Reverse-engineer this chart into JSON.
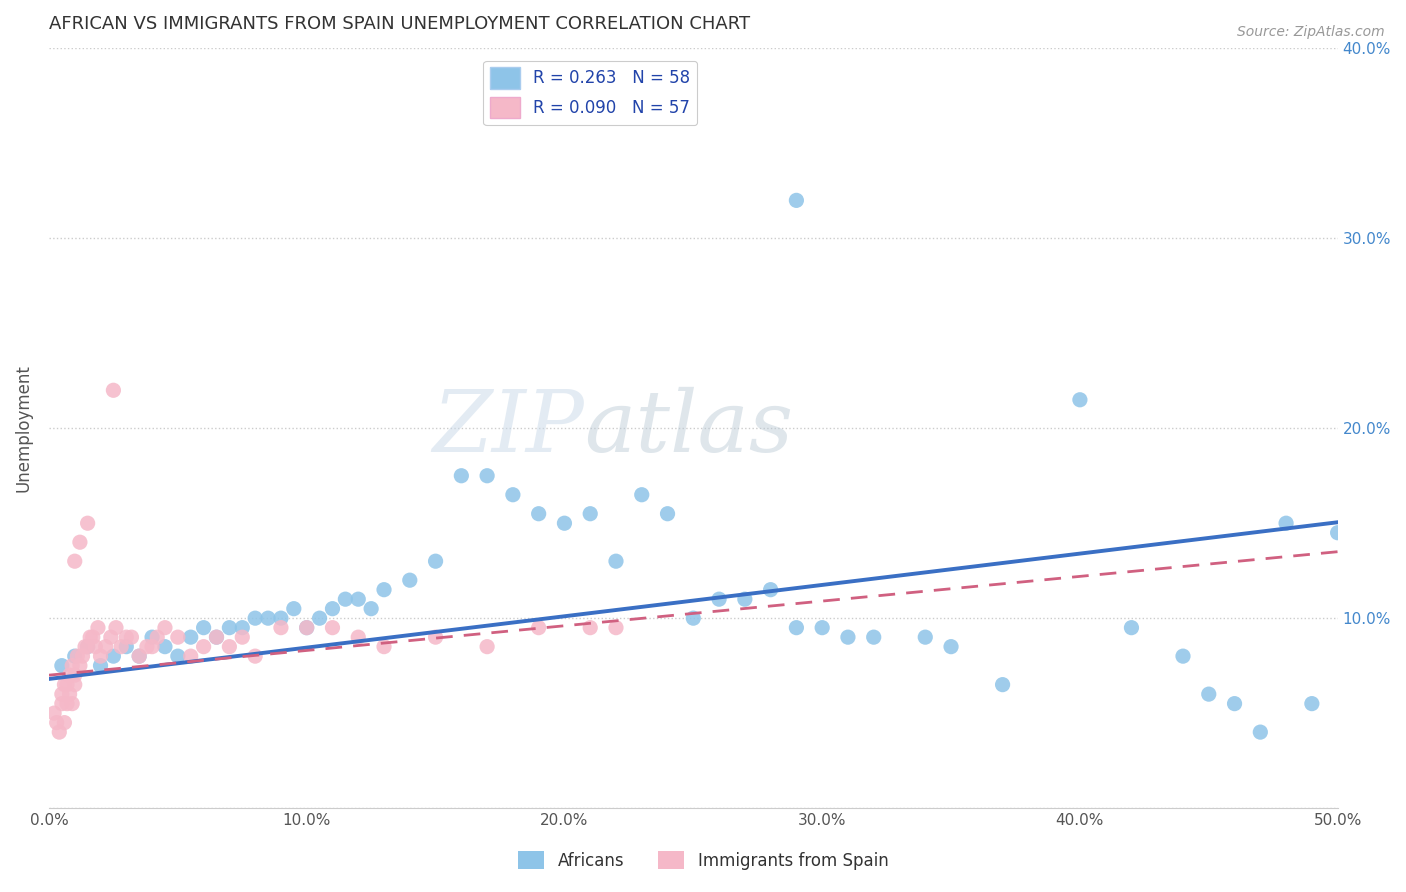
{
  "title": "AFRICAN VS IMMIGRANTS FROM SPAIN UNEMPLOYMENT CORRELATION CHART",
  "source": "Source: ZipAtlas.com",
  "ylabel": "Unemployment",
  "xlim": [
    0.0,
    0.5
  ],
  "ylim": [
    0.0,
    0.4
  ],
  "xticks": [
    0.0,
    0.1,
    0.2,
    0.3,
    0.4,
    0.5
  ],
  "yticks": [
    0.0,
    0.1,
    0.2,
    0.3,
    0.4
  ],
  "xtick_labels": [
    "0.0%",
    "10.0%",
    "20.0%",
    "30.0%",
    "40.0%",
    "50.0%"
  ],
  "ytick_labels_right": [
    "",
    "10.0%",
    "20.0%",
    "30.0%",
    "40.0%"
  ],
  "legend_labels": [
    "Africans",
    "Immigrants from Spain"
  ],
  "R_african": 0.263,
  "N_african": 58,
  "R_spain": 0.09,
  "N_spain": 57,
  "color_african": "#8ec4e8",
  "color_spain": "#f5b8c8",
  "color_african_line": "#3a6fc4",
  "color_spain_line": "#d06080",
  "watermark_zip": "ZIP",
  "watermark_atlas": "atlas",
  "african_x": [
    0.005,
    0.01,
    0.015,
    0.02,
    0.025,
    0.03,
    0.035,
    0.04,
    0.045,
    0.05,
    0.055,
    0.06,
    0.065,
    0.07,
    0.075,
    0.08,
    0.085,
    0.09,
    0.095,
    0.1,
    0.105,
    0.11,
    0.115,
    0.12,
    0.125,
    0.13,
    0.14,
    0.15,
    0.16,
    0.17,
    0.18,
    0.19,
    0.2,
    0.21,
    0.22,
    0.23,
    0.24,
    0.25,
    0.26,
    0.27,
    0.28,
    0.29,
    0.3,
    0.31,
    0.32,
    0.34,
    0.35,
    0.37,
    0.4,
    0.42,
    0.44,
    0.45,
    0.46,
    0.47,
    0.48,
    0.49,
    0.5,
    0.29
  ],
  "african_y": [
    0.075,
    0.08,
    0.085,
    0.075,
    0.08,
    0.085,
    0.08,
    0.09,
    0.085,
    0.08,
    0.09,
    0.095,
    0.09,
    0.095,
    0.095,
    0.1,
    0.1,
    0.1,
    0.105,
    0.095,
    0.1,
    0.105,
    0.11,
    0.11,
    0.105,
    0.115,
    0.12,
    0.13,
    0.175,
    0.175,
    0.165,
    0.155,
    0.15,
    0.155,
    0.13,
    0.165,
    0.155,
    0.1,
    0.11,
    0.11,
    0.115,
    0.095,
    0.095,
    0.09,
    0.09,
    0.09,
    0.085,
    0.065,
    0.215,
    0.095,
    0.08,
    0.06,
    0.055,
    0.04,
    0.15,
    0.055,
    0.145,
    0.32
  ],
  "spain_x": [
    0.002,
    0.003,
    0.004,
    0.005,
    0.005,
    0.006,
    0.006,
    0.007,
    0.007,
    0.008,
    0.008,
    0.009,
    0.009,
    0.01,
    0.01,
    0.011,
    0.012,
    0.013,
    0.014,
    0.015,
    0.016,
    0.017,
    0.018,
    0.019,
    0.02,
    0.022,
    0.024,
    0.026,
    0.028,
    0.03,
    0.032,
    0.035,
    0.038,
    0.04,
    0.042,
    0.045,
    0.05,
    0.055,
    0.06,
    0.065,
    0.07,
    0.075,
    0.08,
    0.09,
    0.1,
    0.11,
    0.12,
    0.13,
    0.15,
    0.17,
    0.19,
    0.21,
    0.22,
    0.01,
    0.012,
    0.015,
    0.025
  ],
  "spain_y": [
    0.05,
    0.045,
    0.04,
    0.055,
    0.06,
    0.065,
    0.045,
    0.055,
    0.065,
    0.06,
    0.07,
    0.055,
    0.075,
    0.065,
    0.07,
    0.08,
    0.075,
    0.08,
    0.085,
    0.085,
    0.09,
    0.09,
    0.085,
    0.095,
    0.08,
    0.085,
    0.09,
    0.095,
    0.085,
    0.09,
    0.09,
    0.08,
    0.085,
    0.085,
    0.09,
    0.095,
    0.09,
    0.08,
    0.085,
    0.09,
    0.085,
    0.09,
    0.08,
    0.095,
    0.095,
    0.095,
    0.09,
    0.085,
    0.09,
    0.085,
    0.095,
    0.095,
    0.095,
    0.13,
    0.14,
    0.15,
    0.22
  ]
}
